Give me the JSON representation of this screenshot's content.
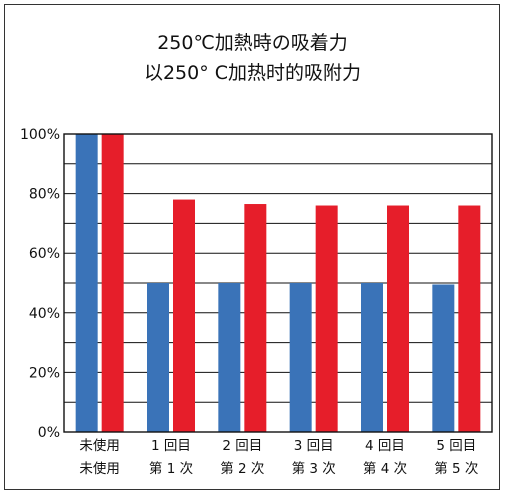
{
  "chart_data": {
    "type": "bar",
    "title": "250℃加熱時の吸着力",
    "subtitle": "以250° C加热时的吸附力",
    "categories": [
      [
        "未使用",
        "未使用"
      ],
      [
        "1 回目",
        "第 1 次"
      ],
      [
        "2 回目",
        "第 2 次"
      ],
      [
        "3 回目",
        "第 3 次"
      ],
      [
        "4 回目",
        "第 4 次"
      ],
      [
        "5 回目",
        "第 5 次"
      ]
    ],
    "series": [
      {
        "color": "#3a73b8",
        "values": [
          100,
          50,
          50,
          50,
          50,
          49.5
        ]
      },
      {
        "color": "#e61e2a",
        "values": [
          100,
          78,
          76.5,
          76,
          76,
          76
        ]
      }
    ],
    "yticks": [
      "0%",
      "20%",
      "40%",
      "60%",
      "80%",
      "100%"
    ],
    "ylim": [
      0,
      100
    ],
    "grid": true,
    "xlabel": "",
    "ylabel": ""
  }
}
